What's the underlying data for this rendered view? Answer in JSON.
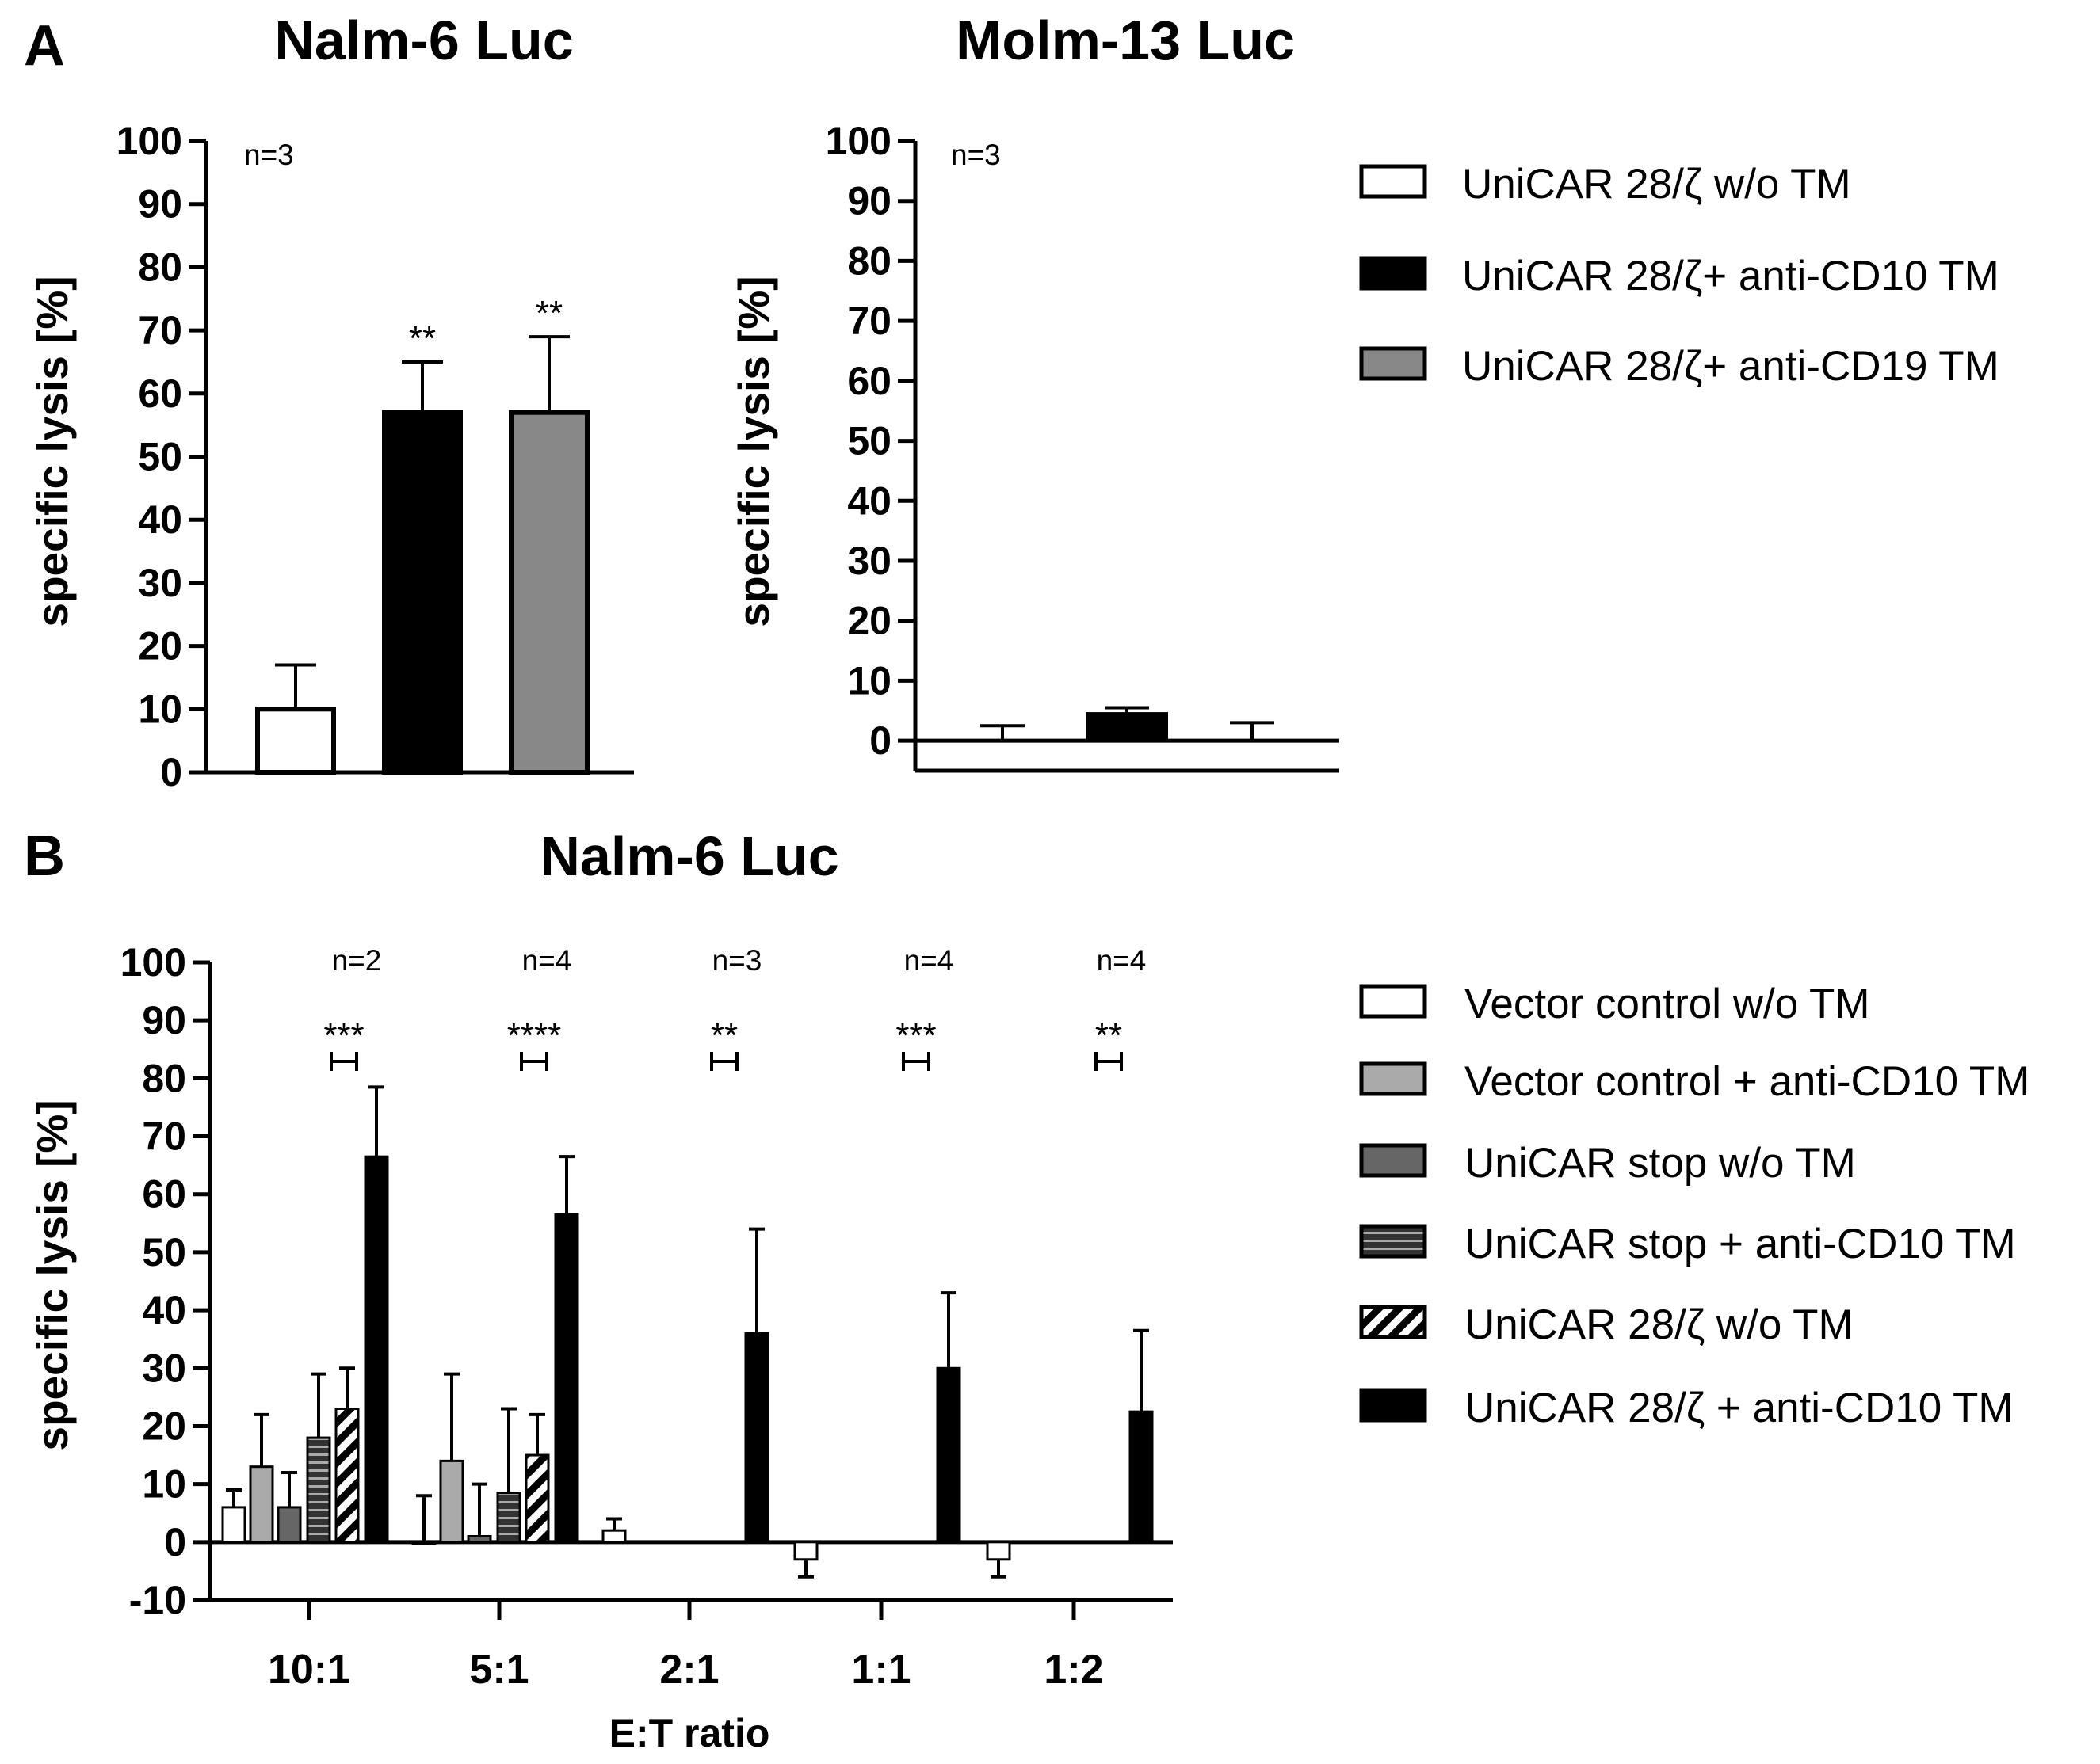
{
  "panel_a_label": "A",
  "panel_b_label": "B",
  "chart_data": [
    {
      "type": "bar",
      "title": "Nalm-6 Luc",
      "ylabel": "specific lysis [%]",
      "ylim": [
        0,
        100
      ],
      "yticks": [
        0,
        10,
        20,
        30,
        40,
        50,
        60,
        70,
        80,
        90,
        100
      ],
      "annotation": "n=3",
      "series": [
        {
          "name": "UniCAR 28/ζ w/o TM",
          "value": 10,
          "error": 7,
          "significance": "",
          "fill": "#ffffff"
        },
        {
          "name": "UniCAR 28/ζ+ anti-CD10 TM",
          "value": 57,
          "error": 8,
          "significance": "**",
          "fill": "#000000"
        },
        {
          "name": "UniCAR 28/ζ+ anti-CD19 TM",
          "value": 57,
          "error": 12,
          "significance": "**",
          "fill": "#888888"
        }
      ]
    },
    {
      "type": "bar",
      "title": "Molm-13  Luc",
      "ylabel": "specific lysis [%]",
      "ylim": [
        -5,
        100
      ],
      "yticks": [
        0,
        10,
        20,
        30,
        40,
        50,
        60,
        70,
        80,
        90,
        100
      ],
      "annotation": "n=3",
      "series": [
        {
          "name": "UniCAR 28/ζ w/o TM",
          "value": 0,
          "error": 2.5,
          "fill": "#ffffff"
        },
        {
          "name": "UniCAR 28/ζ+ anti-CD10 TM",
          "value": 4.5,
          "error": 1,
          "fill": "#000000"
        },
        {
          "name": "UniCAR 28/ζ+ anti-CD19 TM",
          "value": 0,
          "error": 3,
          "fill": "#888888"
        }
      ]
    },
    {
      "type": "bar",
      "title": "Nalm-6 Luc",
      "xlabel": "E:T ratio",
      "ylabel": "specific lysis [%]",
      "ylim": [
        -10,
        100
      ],
      "yticks": [
        -10,
        0,
        10,
        20,
        30,
        40,
        50,
        60,
        70,
        80,
        90,
        100
      ],
      "categories": [
        "10:1",
        "5:1",
        "2:1",
        "1:1",
        "1:2"
      ],
      "annotations": [
        "n=2",
        "n=4",
        "n=3",
        "n=4",
        "n=4"
      ],
      "significance": [
        "***",
        "****",
        "**",
        "***",
        "**"
      ],
      "series": [
        {
          "name": "Vector control w/o TM",
          "pattern": "white",
          "values": [
            6,
            0,
            2,
            -3,
            -3
          ],
          "errors": [
            3,
            8,
            2,
            3,
            3
          ]
        },
        {
          "name": "Vector control + anti-CD10 TM",
          "pattern": "light",
          "values": [
            13,
            14,
            null,
            null,
            null
          ],
          "errors": [
            9,
            15,
            null,
            null,
            null
          ]
        },
        {
          "name": "UniCAR stop w/o TM",
          "pattern": "dark",
          "values": [
            6,
            1,
            null,
            null,
            null
          ],
          "errors": [
            6,
            9,
            null,
            null,
            null
          ]
        },
        {
          "name": "UniCAR stop + anti-CD10 TM",
          "pattern": "hstripe",
          "values": [
            18,
            8.5,
            null,
            null,
            null
          ],
          "errors": [
            11,
            14.5,
            null,
            null,
            null
          ]
        },
        {
          "name": "UniCAR 28/ζ w/o TM",
          "pattern": "diag",
          "values": [
            23,
            15,
            null,
            null,
            null
          ],
          "errors": [
            7,
            7,
            null,
            null,
            null
          ]
        },
        {
          "name": "UniCAR 28/ζ + anti-CD10 TM",
          "pattern": "black",
          "values": [
            66.5,
            56.5,
            36,
            30,
            22.5
          ],
          "errors": [
            12,
            10,
            18,
            13,
            14
          ]
        }
      ]
    }
  ]
}
